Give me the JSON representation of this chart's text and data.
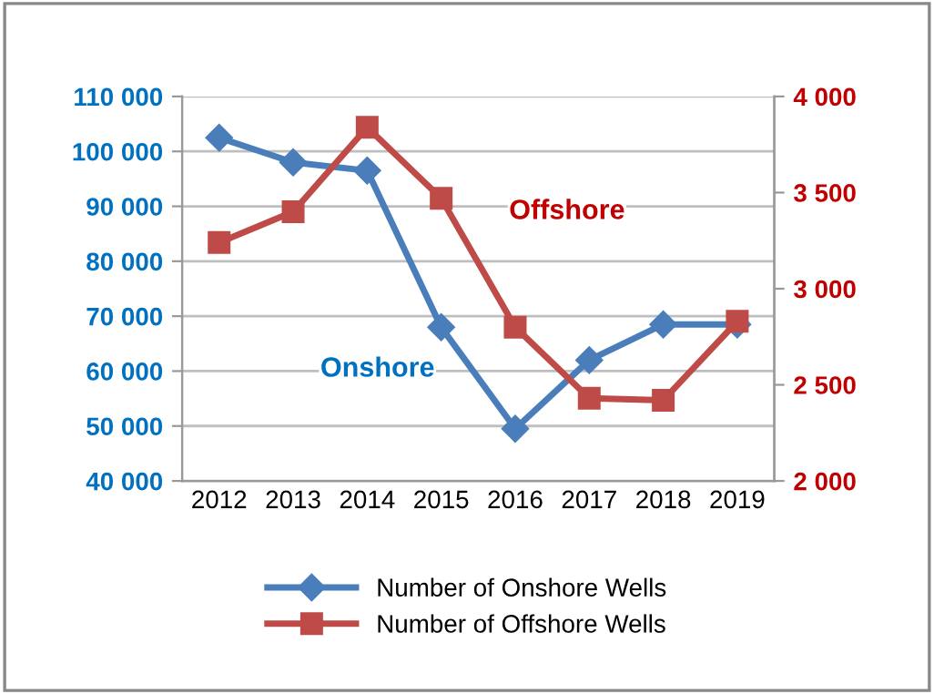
{
  "chart_data": {
    "type": "line",
    "categories": [
      "2012",
      "2013",
      "2014",
      "2015",
      "2016",
      "2017",
      "2018",
      "2019"
    ],
    "series": [
      {
        "name": "Number of Onshore Wells",
        "color": "#4a7ebb",
        "marker": "diamond",
        "values": [
          102500,
          98000,
          96500,
          68000,
          49500,
          62000,
          68500,
          68500
        ]
      },
      {
        "name": "Number of Offshore Wells",
        "color": "#be4b48",
        "marker": "square",
        "axis": "y2",
        "values": [
          3240,
          3400,
          3840,
          3470,
          2800,
          2430,
          2420,
          2830
        ]
      }
    ],
    "ylim": [
      40000,
      110000
    ],
    "yticks": [
      {
        "value": 40000,
        "label": "40 000"
      },
      {
        "value": 50000,
        "label": "50 000"
      },
      {
        "value": 60000,
        "label": "60 000"
      },
      {
        "value": 70000,
        "label": "70 000"
      },
      {
        "value": 80000,
        "label": "80 000"
      },
      {
        "value": 90000,
        "label": "90 000"
      },
      {
        "value": 100000,
        "label": "100 000"
      },
      {
        "value": 110000,
        "label": "110 000"
      }
    ],
    "y2lim": [
      2000,
      4000
    ],
    "y2ticks": [
      {
        "value": 2000,
        "label": "2 000"
      },
      {
        "value": 2500,
        "label": "2 500"
      },
      {
        "value": 3000,
        "label": "3 000"
      },
      {
        "value": 3500,
        "label": "3 500"
      },
      {
        "value": 4000,
        "label": "4 000"
      }
    ],
    "annotations": [
      "Onshore",
      "Offshore"
    ],
    "grid": "y",
    "legend": "bottom",
    "line_style": "solid"
  }
}
